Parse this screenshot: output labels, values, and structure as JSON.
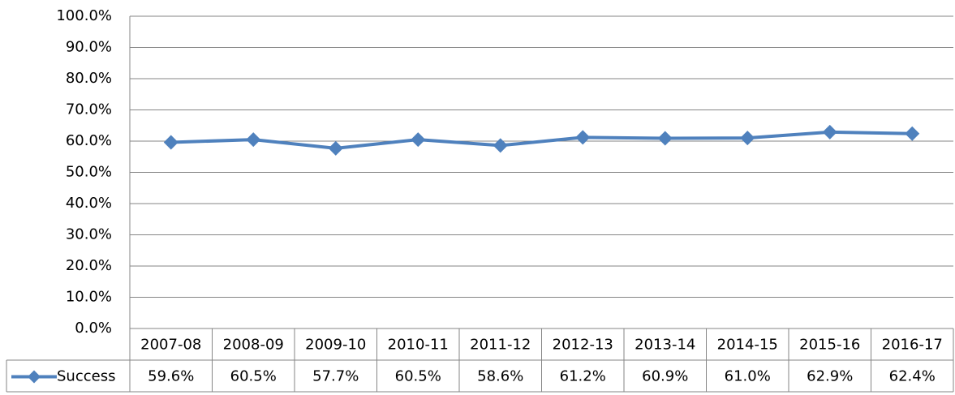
{
  "chart_data": {
    "type": "line",
    "categories": [
      "2007-08",
      "2008-09",
      "2009-10",
      "2010-11",
      "2011-12",
      "2012-13",
      "2013-14",
      "2014-15",
      "2015-16",
      "2016-17"
    ],
    "series": [
      {
        "name": "Success",
        "color": "#4f81bd",
        "values": [
          59.6,
          60.5,
          57.7,
          60.5,
          58.6,
          61.2,
          60.9,
          61.0,
          62.9,
          62.4
        ],
        "value_labels": [
          "59.6%",
          "60.5%",
          "57.7%",
          "60.5%",
          "58.6%",
          "61.2%",
          "60.9%",
          "61.0%",
          "62.9%",
          "62.4%"
        ]
      }
    ],
    "ylim": [
      0,
      100
    ],
    "yticks": [
      {
        "value": 0,
        "label": "0.0%"
      },
      {
        "value": 10,
        "label": "10.0%"
      },
      {
        "value": 20,
        "label": "20.0%"
      },
      {
        "value": 30,
        "label": "30.0%"
      },
      {
        "value": 40,
        "label": "40.0%"
      },
      {
        "value": 50,
        "label": "50.0%"
      },
      {
        "value": 60,
        "label": "60.0%"
      },
      {
        "value": 70,
        "label": "70.0%"
      },
      {
        "value": 80,
        "label": "80.0%"
      },
      {
        "value": 90,
        "label": "90.0%"
      },
      {
        "value": 100,
        "label": "100.0%"
      }
    ],
    "grid": true,
    "data_table": true
  }
}
